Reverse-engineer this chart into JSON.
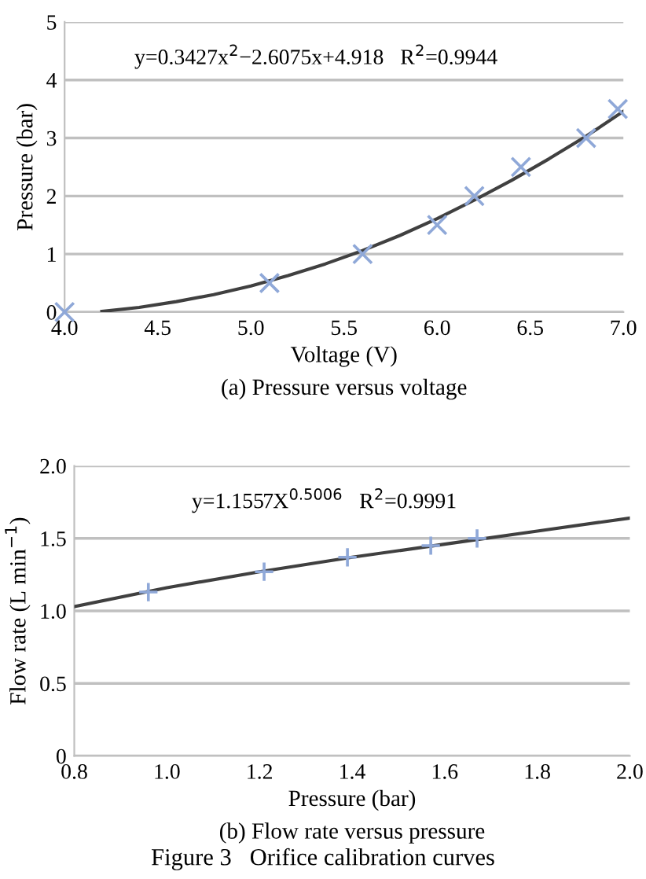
{
  "chart_data": [
    {
      "type": "scatter",
      "title": "(a) Pressure versus voltage",
      "xlabel": "Voltage (V)",
      "ylabel": "Pressure (bar)",
      "annotations": [
        "y=0.3427x$^{2}$−2.6075x+4.918   R$^{2}$=0.9944"
      ],
      "series": [
        {
          "color": "#8fa8d8",
          "marker": "cross",
          "x": [
            4.0,
            5.1,
            5.6,
            6.0,
            6.2,
            6.45,
            6.8,
            6.97
          ],
          "values": [
            0,
            0.5,
            1.0,
            1.5,
            2.0,
            2.5,
            3.0,
            3.5
          ]
        },
        {
          "type": "line",
          "color": "#404040",
          "marker": "none",
          "x": [
            4.2,
            4.4,
            4.6,
            4.8,
            5.0,
            5.2,
            5.4,
            5.6,
            5.8,
            6.0,
            6.2,
            6.4,
            6.6,
            6.8,
            7.0
          ],
          "values": [
            0.01,
            0.08,
            0.18,
            0.3,
            0.45,
            0.63,
            0.83,
            1.06,
            1.32,
            1.61,
            1.93,
            2.27,
            2.64,
            3.03,
            3.46
          ]
        }
      ],
      "xlim": [
        4.0,
        7.0
      ],
      "xticks": [
        {
          "value": 4.0,
          "label": "4.0"
        },
        {
          "value": 4.5,
          "label": "4.5"
        },
        {
          "value": 5.0,
          "label": "5.0"
        },
        {
          "value": 5.5,
          "label": "5.5"
        },
        {
          "value": 6.0,
          "label": "6.0"
        },
        {
          "value": 6.5,
          "label": "6.5"
        },
        {
          "value": 7.0,
          "label": "7.0"
        }
      ],
      "ylim": [
        0,
        5
      ],
      "yticks": [
        0,
        1,
        2,
        3,
        4,
        5
      ],
      "grid": "y"
    },
    {
      "type": "scatter",
      "title": "(b) Flow rate versus pressure",
      "xlabel": "Pressure (bar)",
      "ylabel": "Flow rate (L min$^{−1}$)",
      "annotations": [
        "y=1.1557X$^{0.5006}$   R$^{2}$=0.9991",
        "Figure 3   Orifice calibration curves"
      ],
      "series": [
        {
          "color": "#8fa8d8",
          "marker": "plus",
          "x": [
            0.96,
            1.21,
            1.39,
            1.57,
            1.67
          ],
          "values": [
            1.13,
            1.27,
            1.37,
            1.45,
            1.5
          ]
        },
        {
          "type": "line",
          "color": "#404040",
          "marker": "none",
          "x": [
            0.8,
            1.0,
            1.2,
            1.4,
            1.6,
            1.8,
            2.0
          ],
          "values": [
            1.03,
            1.16,
            1.27,
            1.37,
            1.46,
            1.55,
            1.64
          ]
        }
      ],
      "xlim": [
        0.8,
        2.0
      ],
      "xticks": [
        {
          "value": 0.8,
          "label": "0.8"
        },
        {
          "value": 1.0,
          "label": "1.0"
        },
        {
          "value": 1.2,
          "label": "1.2"
        },
        {
          "value": 1.4,
          "label": "1.4"
        },
        {
          "value": 1.6,
          "label": "1.6"
        },
        {
          "value": 1.8,
          "label": "1.8"
        },
        {
          "value": 2.0,
          "label": "2.0"
        }
      ],
      "ylim": [
        0,
        2.0
      ],
      "yticks": [
        0,
        {
          "value": 0.5,
          "label": "0.5"
        },
        {
          "value": 1.0,
          "label": "1.0"
        },
        {
          "value": 1.5,
          "label": "1.5"
        },
        {
          "value": 2.0,
          "label": "2.0"
        }
      ],
      "grid": "y"
    }
  ]
}
